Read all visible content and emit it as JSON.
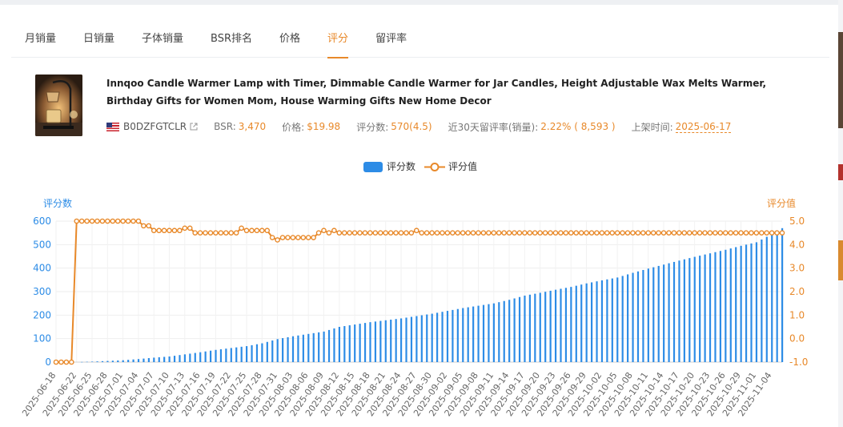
{
  "tabs": [
    {
      "label": "月销量",
      "active": false
    },
    {
      "label": "日销量",
      "active": false
    },
    {
      "label": "子体销量",
      "active": false
    },
    {
      "label": "BSR排名",
      "active": false
    },
    {
      "label": "价格",
      "active": false
    },
    {
      "label": "评分",
      "active": true
    },
    {
      "label": "留评率",
      "active": false
    }
  ],
  "product": {
    "title": "Innqoo Candle Warmer Lamp with Timer, Dimmable Candle Warmer for Jar Candles, Height Adjustable Wax Melts Warmer, Birthday Gifts for Women Mom, House Warming Gifts New Home Decor",
    "asin": "B0DZFGTCLR",
    "bsr_label": "BSR:",
    "bsr_value": "3,470",
    "price_label": "价格:",
    "price_value": "$19.98",
    "rating_label": "评分数:",
    "rating_value": "570(4.5)",
    "review_rate_label": "近30天留评率(销量):",
    "review_rate_value": "2.22% ( 8,593 )",
    "listed_label": "上架时间:",
    "listed_value": "2025-06-17"
  },
  "colors": {
    "accent": "#e8892a",
    "bar": "#2d8ce6",
    "line": "#e8892a",
    "left_axis": "#2d8ce6",
    "right_axis": "#e8892a"
  },
  "chart_data": {
    "type": "bar",
    "legend": [
      "评分数",
      "评分值"
    ],
    "legend_position": "top-center",
    "ylabel_left": "评分数",
    "ylabel_right": "评分值",
    "ylim_left": [
      0,
      600
    ],
    "yticks_left": [
      0,
      100,
      200,
      300,
      400,
      500,
      600
    ],
    "ylim_right": [
      -1.0,
      5.0
    ],
    "yticks_right": [
      "-1.0",
      "0.0",
      "1.0",
      "2.0",
      "3.0",
      "4.0",
      "5.0"
    ],
    "x_start": "2025-06-18",
    "x_end": "2025-11-06",
    "x_tick_labels": [
      "2025-06-18",
      "2025-06-22",
      "2025-06-25",
      "2025-06-28",
      "2025-07-01",
      "2025-07-04",
      "2025-07-07",
      "2025-07-10",
      "2025-07-13",
      "2025-07-16",
      "2025-07-19",
      "2025-07-22",
      "2025-07-25",
      "2025-07-28",
      "2025-07-31",
      "2025-08-03",
      "2025-08-06",
      "2025-08-09",
      "2025-08-12",
      "2025-08-15",
      "2025-08-18",
      "2025-08-21",
      "2025-08-24",
      "2025-08-27",
      "2025-08-30",
      "2025-09-02",
      "2025-09-05",
      "2025-09-08",
      "2025-09-11",
      "2025-09-14",
      "2025-09-17",
      "2025-09-20",
      "2025-09-23",
      "2025-09-26",
      "2025-09-29",
      "2025-10-02",
      "2025-10-05",
      "2025-10-08",
      "2025-10-11",
      "2025-10-14",
      "2025-10-17",
      "2025-10-20",
      "2025-10-23",
      "2025-10-26",
      "2025-10-29",
      "2025-11-01",
      "2025-11-04"
    ],
    "series": [
      {
        "name": "评分数",
        "type": "bar",
        "axis": "left",
        "points": [
          [
            "2025-06-18",
            0
          ],
          [
            "2025-06-22",
            0
          ],
          [
            "2025-06-25",
            2
          ],
          [
            "2025-06-28",
            5
          ],
          [
            "2025-07-01",
            8
          ],
          [
            "2025-07-04",
            13
          ],
          [
            "2025-07-07",
            19
          ],
          [
            "2025-07-10",
            24
          ],
          [
            "2025-07-13",
            33
          ],
          [
            "2025-07-16",
            42
          ],
          [
            "2025-07-19",
            52
          ],
          [
            "2025-07-22",
            60
          ],
          [
            "2025-07-25",
            68
          ],
          [
            "2025-07-28",
            80
          ],
          [
            "2025-07-31",
            98
          ],
          [
            "2025-08-03",
            110
          ],
          [
            "2025-08-06",
            120
          ],
          [
            "2025-08-09",
            130
          ],
          [
            "2025-08-12",
            150
          ],
          [
            "2025-08-15",
            160
          ],
          [
            "2025-08-18",
            170
          ],
          [
            "2025-08-21",
            178
          ],
          [
            "2025-08-24",
            186
          ],
          [
            "2025-08-27",
            196
          ],
          [
            "2025-08-30",
            206
          ],
          [
            "2025-09-02",
            218
          ],
          [
            "2025-09-05",
            230
          ],
          [
            "2025-09-08",
            240
          ],
          [
            "2025-09-11",
            250
          ],
          [
            "2025-09-14",
            265
          ],
          [
            "2025-09-17",
            283
          ],
          [
            "2025-09-20",
            295
          ],
          [
            "2025-09-23",
            308
          ],
          [
            "2025-09-26",
            320
          ],
          [
            "2025-09-29",
            335
          ],
          [
            "2025-10-02",
            348
          ],
          [
            "2025-10-05",
            360
          ],
          [
            "2025-10-08",
            380
          ],
          [
            "2025-10-11",
            398
          ],
          [
            "2025-10-14",
            415
          ],
          [
            "2025-10-17",
            432
          ],
          [
            "2025-10-20",
            448
          ],
          [
            "2025-10-23",
            463
          ],
          [
            "2025-10-26",
            478
          ],
          [
            "2025-10-29",
            495
          ],
          [
            "2025-11-01",
            510
          ],
          [
            "2025-11-04",
            545
          ],
          [
            "2025-11-06",
            570
          ]
        ]
      },
      {
        "name": "评分值",
        "type": "line",
        "axis": "right",
        "points": [
          [
            "2025-06-18",
            -1.0
          ],
          [
            "2025-06-21",
            -1.0
          ],
          [
            "2025-06-22",
            5.0
          ],
          [
            "2025-07-04",
            5.0
          ],
          [
            "2025-07-05",
            4.8
          ],
          [
            "2025-07-06",
            4.8
          ],
          [
            "2025-07-07",
            4.6
          ],
          [
            "2025-07-12",
            4.6
          ],
          [
            "2025-07-13",
            4.7
          ],
          [
            "2025-07-14",
            4.7
          ],
          [
            "2025-07-15",
            4.5
          ],
          [
            "2025-07-23",
            4.5
          ],
          [
            "2025-07-24",
            4.7
          ],
          [
            "2025-07-25",
            4.6
          ],
          [
            "2025-07-28",
            4.6
          ],
          [
            "2025-07-30",
            4.3
          ],
          [
            "2025-07-31",
            4.2
          ],
          [
            "2025-08-01",
            4.3
          ],
          [
            "2025-08-07",
            4.3
          ],
          [
            "2025-08-08",
            4.5
          ],
          [
            "2025-08-09",
            4.6
          ],
          [
            "2025-08-10",
            4.5
          ],
          [
            "2025-08-11",
            4.6
          ],
          [
            "2025-08-12",
            4.5
          ],
          [
            "2025-08-26",
            4.5
          ],
          [
            "2025-08-27",
            4.6
          ],
          [
            "2025-08-28",
            4.5
          ],
          [
            "2025-11-06",
            4.5
          ]
        ]
      }
    ],
    "grid": true
  }
}
